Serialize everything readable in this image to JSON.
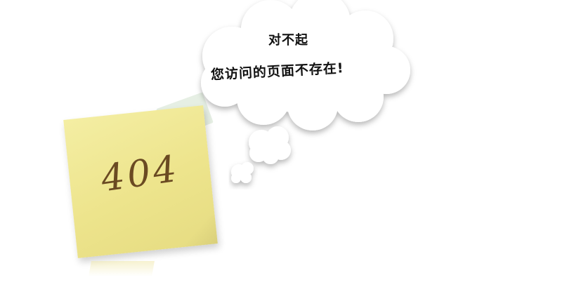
{
  "note": {
    "code": "404"
  },
  "message": {
    "line1": "对不起",
    "line2": "您访问的页面不存在!"
  },
  "colors": {
    "note_yellow": "#f0e899",
    "note_text": "#6a4a22",
    "cloud_fill": "#ffffff",
    "cloud_shadow": "#cccccc"
  }
}
